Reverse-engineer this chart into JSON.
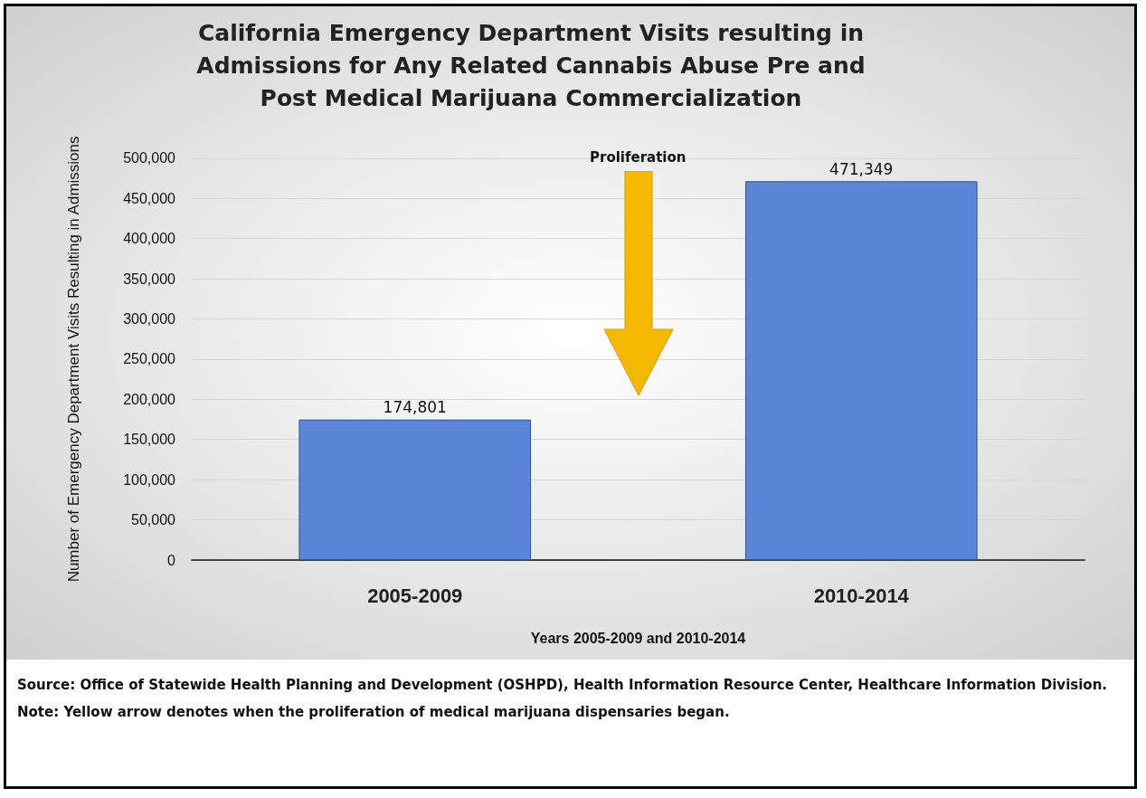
{
  "chart_data": {
    "type": "bar",
    "title": "California Emergency Department Visits resulting in Admissions for Any Related Cannabis Abuse Pre and Post Medical Marijuana Commercialization",
    "xlabel": "Years 2005-2009 and 2010-2014",
    "ylabel": "Number of Emergency Department Visits Resulting in Admissions",
    "categories": [
      "2005-2009",
      "2010-2014"
    ],
    "values": [
      174801,
      471349
    ],
    "color": "#5b85d6",
    "value_labels": [
      "174,801",
      "471,349"
    ],
    "ylim": [
      0,
      500000
    ],
    "yticks": [
      0,
      {
        "value": 50000,
        "label": "50,000"
      },
      {
        "value": 100000,
        "label": "100,000"
      },
      {
        "value": 150000,
        "label": "150,000"
      },
      {
        "value": 200000,
        "label": "200,000"
      },
      {
        "value": 250000,
        "label": "250,000"
      },
      {
        "value": 300000,
        "label": "300,000"
      },
      {
        "value": 350000,
        "label": "350,000"
      },
      {
        "value": 400000,
        "label": "400,000"
      },
      {
        "value": 450000,
        "label": "450,000"
      },
      {
        "value": 500000,
        "label": "500,000"
      }
    ],
    "grid": "y",
    "annotations": [
      "Proliferation",
      "Source:  Office of Statewide Health  Planning and Development (OSHPD), Health Information Resource Center, Healthcare Information Division.  Note:  Yellow arrow denotes when the proliferation of medical marijuana dispensaries began."
    ]
  }
}
